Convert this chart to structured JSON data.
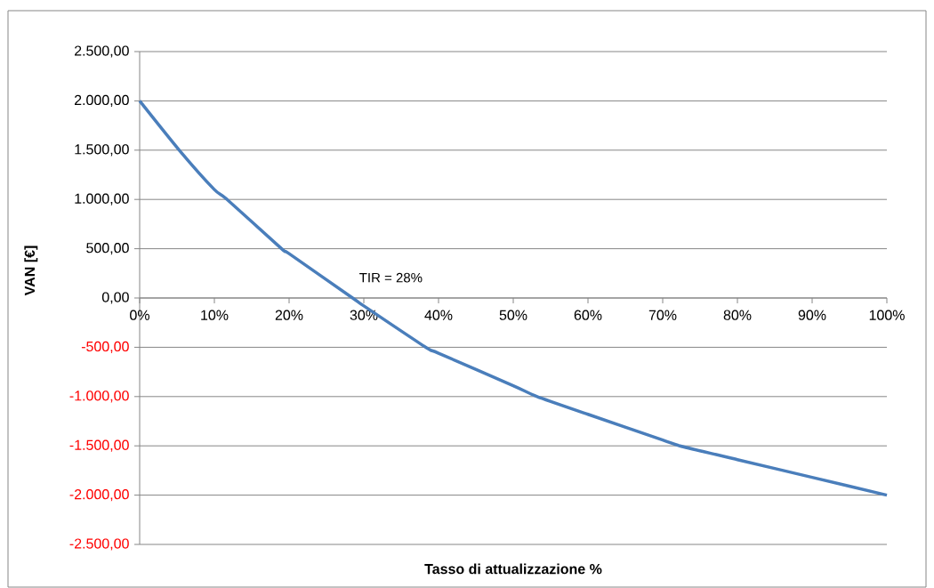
{
  "chart_data": {
    "type": "line",
    "xlabel": "Tasso di attualizzazione %",
    "ylabel": "VAN [€]",
    "x": [
      0,
      5.3,
      10,
      11.7,
      19,
      20,
      28.5,
      30,
      38.3,
      40,
      50,
      53.2,
      60,
      70,
      72.3,
      80,
      90,
      100
    ],
    "values": [
      2000,
      1500,
      1100,
      1000,
      500,
      450,
      0,
      -80,
      -500,
      -560,
      -890,
      -1000,
      -1180,
      -1440,
      -1500,
      -1640,
      -1820,
      -2000
    ],
    "color": "#4a7ebb",
    "marker": "none",
    "line_style": "solid",
    "grid": "y",
    "xlim": [
      0,
      100
    ],
    "ylim": [
      -2500,
      2500
    ],
    "xticks": [
      {
        "value": 0,
        "label": "0%"
      },
      {
        "value": 10,
        "label": "10%"
      },
      {
        "value": 20,
        "label": "20%"
      },
      {
        "value": 30,
        "label": "30%"
      },
      {
        "value": 40,
        "label": "40%"
      },
      {
        "value": 50,
        "label": "50%"
      },
      {
        "value": 60,
        "label": "60%"
      },
      {
        "value": 70,
        "label": "70%"
      },
      {
        "value": 80,
        "label": "80%"
      },
      {
        "value": 90,
        "label": "90%"
      },
      {
        "value": 100,
        "label": "100%"
      }
    ],
    "yticks": [
      {
        "value": -2500,
        "label": "-2.500,00"
      },
      {
        "value": -2000,
        "label": "-2.000,00"
      },
      {
        "value": -1500,
        "label": "-1.500,00"
      },
      {
        "value": -1000,
        "label": "-1.000,00"
      },
      {
        "value": -500,
        "label": "-500,00"
      },
      {
        "value": 0,
        "label": "0,00"
      },
      {
        "value": 500,
        "label": "500,00"
      },
      {
        "value": 1000,
        "label": "1.000,00"
      },
      {
        "value": 1500,
        "label": "1.500,00"
      },
      {
        "value": 2000,
        "label": "2.000,00"
      },
      {
        "value": 2500,
        "label": "2.500,00"
      }
    ],
    "annotations": [
      {
        "text": "TIR = 28%",
        "x": 28,
        "y": 0
      }
    ]
  }
}
